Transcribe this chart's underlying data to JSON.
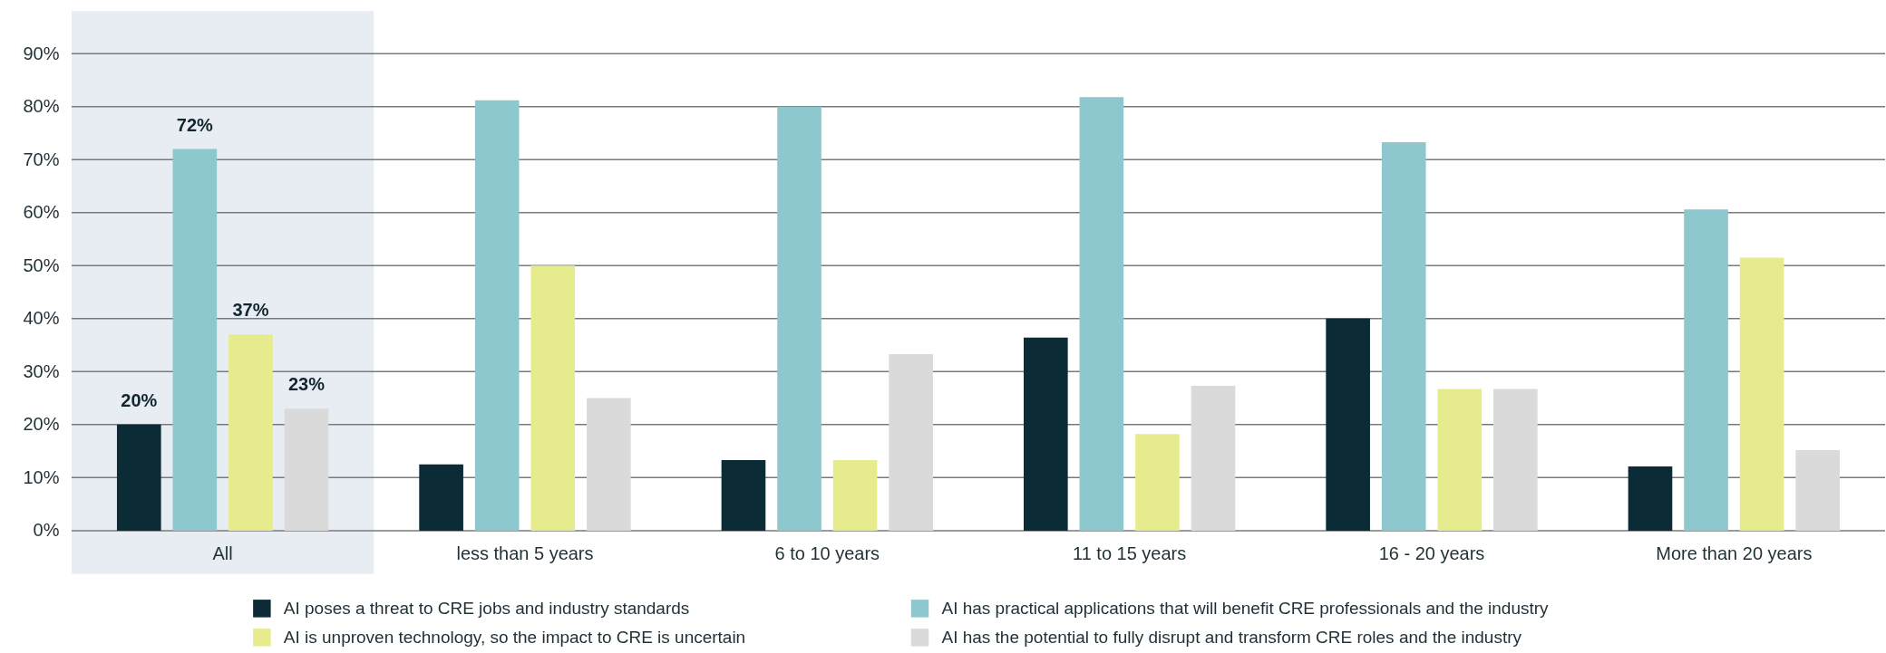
{
  "chart_data": {
    "type": "bar",
    "categories": [
      "All",
      "less than 5 years",
      "6 to 10 years",
      "11 to 15 years",
      "16 - 20 years",
      "More than 20 years"
    ],
    "series": [
      {
        "name": "AI poses a threat to CRE jobs and industry standards",
        "color": "#0b2b36",
        "values": [
          20,
          12.5,
          13.3,
          36.4,
          40,
          12.1
        ],
        "value_labels": [
          "20%",
          null,
          null,
          null,
          null,
          null
        ]
      },
      {
        "name": "AI has practical applications that will benefit CRE professionals and the industry",
        "color": "#8cc8ce",
        "values": [
          72,
          81.2,
          80,
          81.8,
          73.3,
          60.6
        ],
        "value_labels": [
          "72%",
          null,
          null,
          null,
          null,
          null
        ]
      },
      {
        "name": "AI is unproven technology, so the impact to CRE is uncertain",
        "color": "#e6eb8e",
        "values": [
          37,
          50,
          13.3,
          18.2,
          26.7,
          51.5
        ],
        "value_labels": [
          "37%",
          null,
          null,
          null,
          null,
          null
        ]
      },
      {
        "name": "AI has the potential to fully disrupt and transform CRE roles and the industry",
        "color": "#dadada",
        "values": [
          23,
          25,
          33.3,
          27.3,
          26.7,
          15.2
        ],
        "value_labels": [
          "23%",
          null,
          null,
          null,
          null,
          null
        ]
      }
    ],
    "ylim": [
      0,
      90
    ],
    "yticks": [
      {
        "value": 0,
        "label": "0%"
      },
      {
        "value": 10,
        "label": "10%"
      },
      {
        "value": 20,
        "label": "20%"
      },
      {
        "value": 30,
        "label": "30%"
      },
      {
        "value": 40,
        "label": "40%"
      },
      {
        "value": 50,
        "label": "50%"
      },
      {
        "value": 60,
        "label": "60%"
      },
      {
        "value": 70,
        "label": "70%"
      },
      {
        "value": 80,
        "label": "80%"
      },
      {
        "value": 90,
        "label": "90%"
      }
    ],
    "grid": "y",
    "legend": "bottom",
    "bands": [
      {
        "axis": "x",
        "from": "All",
        "to": "All",
        "color": "#e8edf4"
      }
    ]
  }
}
